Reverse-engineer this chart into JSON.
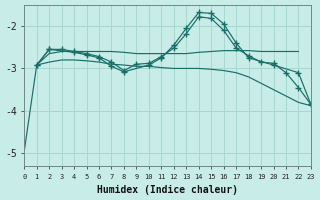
{
  "xlabel": "Humidex (Indice chaleur)",
  "bg_color": "#c8ece8",
  "grid_color": "#a8d8d0",
  "line_color": "#1a6e68",
  "xlim": [
    0,
    23
  ],
  "ylim": [
    -5.3,
    -1.5
  ],
  "yticks": [
    -5,
    -4,
    -3,
    -2
  ],
  "xticks": [
    0,
    1,
    2,
    3,
    4,
    5,
    6,
    7,
    8,
    9,
    10,
    11,
    12,
    13,
    14,
    15,
    16,
    17,
    18,
    19,
    20,
    21,
    22,
    23
  ],
  "series": [
    {
      "x": [
        0,
        1,
        2,
        3,
        4,
        5,
        6,
        7,
        8,
        9,
        10,
        11,
        12,
        13,
        14,
        15,
        16,
        17,
        18,
        19,
        20,
        21,
        22
      ],
      "y": [
        -4.95,
        -2.92,
        -2.65,
        -2.6,
        -2.6,
        -2.6,
        -2.6,
        -2.6,
        -2.62,
        -2.65,
        -2.65,
        -2.65,
        -2.65,
        -2.65,
        -2.62,
        -2.6,
        -2.58,
        -2.58,
        -2.58,
        -2.6,
        -2.6,
        -2.6,
        -2.6
      ],
      "marker": false
    },
    {
      "x": [
        1,
        2,
        3,
        4,
        5,
        6,
        7,
        8,
        9,
        10,
        11,
        12,
        13,
        14,
        15,
        16,
        17,
        18,
        19,
        20,
        21,
        22,
        23
      ],
      "y": [
        -2.92,
        -2.85,
        -2.8,
        -2.8,
        -2.82,
        -2.85,
        -2.9,
        -2.92,
        -2.95,
        -2.95,
        -2.98,
        -3.0,
        -3.0,
        -3.0,
        -3.02,
        -3.05,
        -3.1,
        -3.2,
        -3.35,
        -3.5,
        -3.65,
        -3.8,
        -3.88
      ],
      "marker": false
    },
    {
      "x": [
        1,
        2,
        3,
        4,
        5,
        6,
        7,
        8,
        9,
        10,
        11,
        12,
        13,
        14,
        15,
        16,
        17,
        18,
        19,
        20,
        21,
        22,
        23
      ],
      "y": [
        -2.92,
        -2.55,
        -2.55,
        -2.6,
        -2.65,
        -2.72,
        -2.85,
        -3.05,
        -2.9,
        -2.88,
        -2.72,
        -2.52,
        -2.18,
        -1.78,
        -1.82,
        -2.1,
        -2.52,
        -2.7,
        -2.85,
        -2.88,
        -3.1,
        -3.45,
        -3.85
      ],
      "marker": true
    },
    {
      "x": [
        1,
        2,
        4,
        5,
        6,
        7,
        8,
        10,
        11,
        12,
        13,
        14,
        15,
        16,
        17,
        18,
        20,
        22,
        23
      ],
      "y": [
        -2.92,
        -2.55,
        -2.62,
        -2.68,
        -2.75,
        -2.95,
        -3.08,
        -2.92,
        -2.75,
        -2.45,
        -2.05,
        -1.68,
        -1.7,
        -1.95,
        -2.4,
        -2.75,
        -2.92,
        -3.1,
        -3.85
      ],
      "marker": true
    }
  ]
}
